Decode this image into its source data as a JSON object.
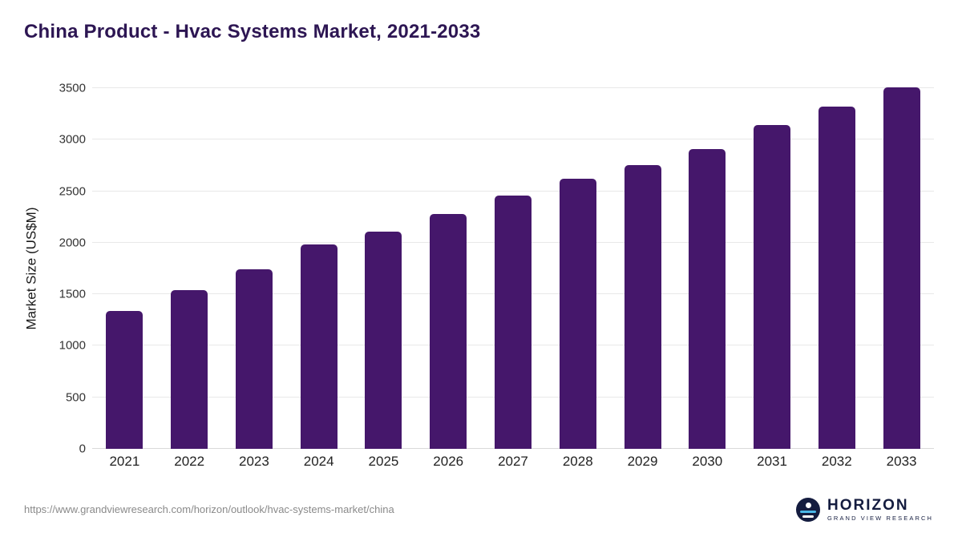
{
  "colors": {
    "bar": "#45176B",
    "title": "#2D1653",
    "gridline": "#E8E8E8",
    "logo_navy": "#141C3F",
    "logo_blue": "#4AB8E8"
  },
  "chart_data": {
    "type": "bar",
    "title": "China Product - Hvac Systems Market, 2021-2033",
    "xlabel": "",
    "ylabel": "Market Size (US$M)",
    "ylim": [
      0,
      3500
    ],
    "yticks": [
      0,
      500,
      1000,
      1500,
      2000,
      2500,
      3000,
      3500
    ],
    "grid": "horizontal",
    "legend": "none",
    "categories": [
      "2021",
      "2022",
      "2023",
      "2024",
      "2025",
      "2026",
      "2027",
      "2028",
      "2029",
      "2030",
      "2031",
      "2032",
      "2033"
    ],
    "values": [
      1340,
      1540,
      1740,
      1980,
      2110,
      2280,
      2460,
      2620,
      2750,
      2910,
      3140,
      3320,
      3510
    ]
  },
  "footer": {
    "url": "https://www.grandviewresearch.com/horizon/outlook/hvac-systems-market/china",
    "logo": {
      "name": "HORIZON",
      "subtitle": "GRAND VIEW RESEARCH"
    }
  }
}
